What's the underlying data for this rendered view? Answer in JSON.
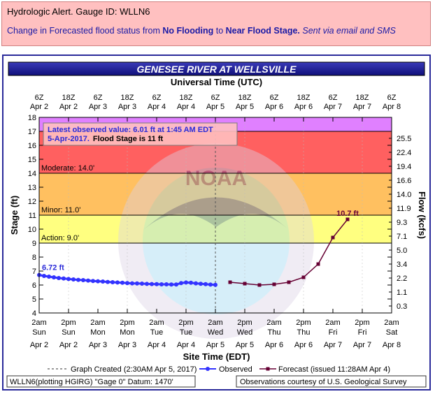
{
  "alert": {
    "line1": "Hydrologic Alert. Gauge ID: WLLN6",
    "line2_prefix": "Change in Forecasted flood status from ",
    "from_status": "No Flooding",
    "line2_mid": " to ",
    "to_status": "Near Flood Stage.",
    "sent_via": "Sent via email and SMS"
  },
  "chart_data": {
    "type": "line",
    "title": "GENESEE RIVER AT WELLSVILLE",
    "top_axis_title": "Universal Time (UTC)",
    "xlabel": "Site Time (EDT)",
    "ylabel": "Stage (ft)",
    "y2label": "Flow (kcfs)",
    "ylim": [
      4,
      18
    ],
    "y_ticks": [
      4,
      5,
      6,
      7,
      8,
      9,
      10,
      11,
      12,
      13,
      14,
      15,
      16,
      17,
      18
    ],
    "y2_ticks": [
      {
        "stage": 4.5,
        "label": "0.3"
      },
      {
        "stage": 5.5,
        "label": "1.1"
      },
      {
        "stage": 6.5,
        "label": "2.2"
      },
      {
        "stage": 7.5,
        "label": "3.4"
      },
      {
        "stage": 8.5,
        "label": "5.0"
      },
      {
        "stage": 9.5,
        "label": "7.1"
      },
      {
        "stage": 10.5,
        "label": "9.3"
      },
      {
        "stage": 11.5,
        "label": "11.9"
      },
      {
        "stage": 12.5,
        "label": "14.0"
      },
      {
        "stage": 13.5,
        "label": "16.6"
      },
      {
        "stage": 14.5,
        "label": "19.4"
      },
      {
        "stage": 15.5,
        "label": "22.4"
      },
      {
        "stage": 16.5,
        "label": "25.5"
      }
    ],
    "bottom_ticks": [
      {
        "time": "2am",
        "day": "Sun",
        "date": "Apr 2"
      },
      {
        "time": "2pm",
        "day": "Sun",
        "date": "Apr 2"
      },
      {
        "time": "2am",
        "day": "Mon",
        "date": "Apr 3"
      },
      {
        "time": "2pm",
        "day": "Mon",
        "date": "Apr 3"
      },
      {
        "time": "2am",
        "day": "Tue",
        "date": "Apr 4"
      },
      {
        "time": "2pm",
        "day": "Tue",
        "date": "Apr 4"
      },
      {
        "time": "2am",
        "day": "Wed",
        "date": "Apr 5"
      },
      {
        "time": "2pm",
        "day": "Wed",
        "date": "Apr 5"
      },
      {
        "time": "2am",
        "day": "Thu",
        "date": "Apr 6"
      },
      {
        "time": "2pm",
        "day": "Thu",
        "date": "Apr 6"
      },
      {
        "time": "2am",
        "day": "Fri",
        "date": "Apr 7"
      },
      {
        "time": "2pm",
        "day": "Fri",
        "date": "Apr 7"
      },
      {
        "time": "2am",
        "day": "Sat",
        "date": "Apr 8"
      }
    ],
    "top_ticks": [
      {
        "label": "6Z",
        "date": "Apr 2"
      },
      {
        "label": "18Z",
        "date": "Apr 2"
      },
      {
        "label": "6Z",
        "date": "Apr 3"
      },
      {
        "label": "18Z",
        "date": "Apr 3"
      },
      {
        "label": "6Z",
        "date": "Apr 4"
      },
      {
        "label": "18Z",
        "date": "Apr 4"
      },
      {
        "label": "6Z",
        "date": "Apr 5"
      },
      {
        "label": "18Z",
        "date": "Apr 5"
      },
      {
        "label": "6Z",
        "date": "Apr 6"
      },
      {
        "label": "18Z",
        "date": "Apr 6"
      },
      {
        "label": "6Z",
        "date": "Apr 7"
      },
      {
        "label": "18Z",
        "date": "Apr 7"
      },
      {
        "label": "6Z",
        "date": "Apr 8"
      }
    ],
    "flood_zones": [
      {
        "name": "Action",
        "from": 9,
        "to": 11,
        "color": "#ffff80",
        "label": "Action:  9.0'"
      },
      {
        "name": "Minor",
        "from": 11,
        "to": 14,
        "color": "#ffc060",
        "label": "Minor:  11.0'"
      },
      {
        "name": "Moderate",
        "from": 14,
        "to": 17,
        "color": "#ff6060",
        "label": "Moderate:  14.0'"
      },
      {
        "name": "Major",
        "from": 17,
        "to": 18,
        "color": "#e080ff",
        "label": ""
      }
    ],
    "info_box": {
      "line1": "Latest observed value: 6.01 ft at 1:45 AM EDT",
      "line2_date": "5-Apr-2017.",
      "line2_stage": "Flood Stage is 11 ft"
    },
    "start_label": "6.72 ft",
    "crest_label": "10.7 ft",
    "observed": {
      "name": "Observed",
      "color": "#3333ff",
      "x": [
        0,
        2,
        4,
        6,
        8,
        10,
        12,
        14,
        16,
        18,
        20,
        22,
        24,
        26,
        28,
        30,
        32,
        34,
        36,
        38,
        40,
        42,
        44,
        46,
        48,
        50,
        52,
        54,
        56,
        58,
        60,
        62,
        64,
        66,
        68,
        70,
        72
      ],
      "values": [
        6.72,
        6.65,
        6.6,
        6.55,
        6.5,
        6.47,
        6.43,
        6.4,
        6.37,
        6.35,
        6.32,
        6.29,
        6.27,
        6.25,
        6.22,
        6.2,
        6.18,
        6.16,
        6.14,
        6.12,
        6.11,
        6.1,
        6.08,
        6.07,
        6.06,
        6.05,
        6.05,
        6.04,
        6.04,
        6.14,
        6.18,
        6.16,
        6.12,
        6.09,
        6.06,
        6.03,
        6.01
      ]
    },
    "forecast": {
      "name": "Forecast (issued 11:28AM Apr 4)",
      "color": "#660033",
      "x": [
        78,
        84,
        90,
        96,
        102,
        108,
        114,
        120,
        126
      ],
      "values": [
        6.2,
        6.1,
        6.0,
        6.05,
        6.2,
        6.55,
        7.5,
        9.4,
        10.7
      ]
    },
    "graph_created": {
      "x": 72,
      "label": "Graph Created (2:30AM Apr 5, 2017)"
    },
    "footer_left": "WLLN6(plotting HGIRG) \"Gage 0\" Datum: 1470'",
    "footer_right": "Observations courtesy of U.S. Geological Survey"
  }
}
